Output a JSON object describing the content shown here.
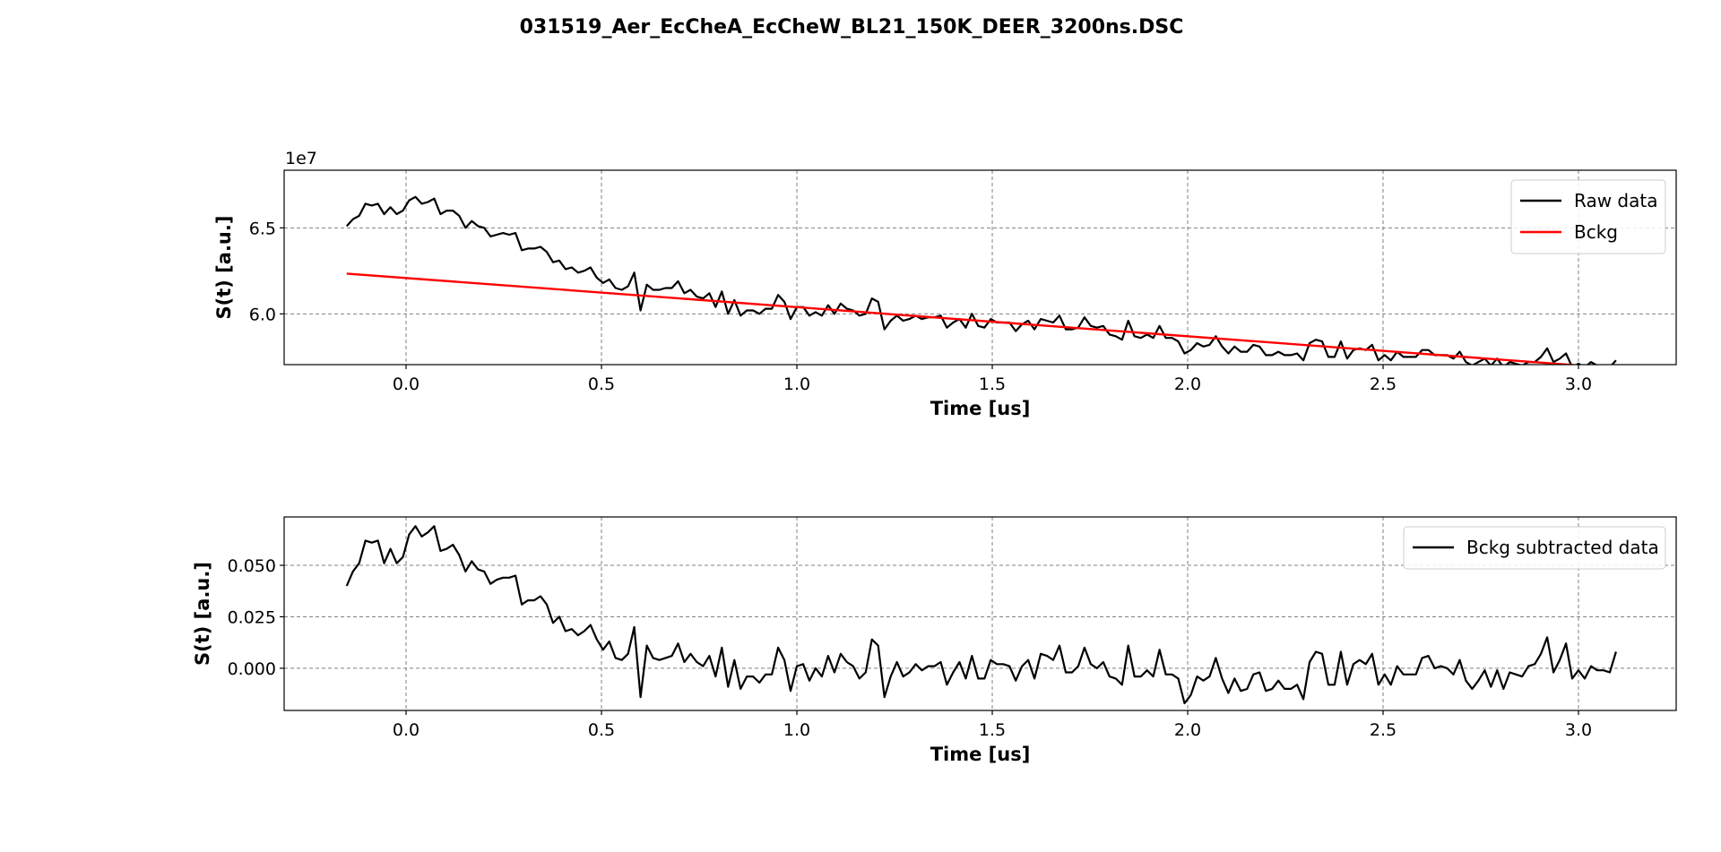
{
  "figure": {
    "title": "031519_Aer_EcCheA_EcCheW_BL21_150K_DEER_3200ns.DSC"
  },
  "chart_data": [
    {
      "type": "line",
      "id": "top",
      "title": "",
      "xlabel": "Time [us]",
      "ylabel": "S(t) [a.u.]",
      "offset_text": "1e7",
      "xlim": [
        -0.312,
        3.25
      ],
      "ylim": [
        5.705,
        6.835
      ],
      "x_ticks": [
        0.0,
        0.5,
        1.0,
        1.5,
        2.0,
        2.5,
        3.0
      ],
      "x_tick_labels": [
        "0.0",
        "0.5",
        "1.0",
        "1.5",
        "2.0",
        "2.5",
        "3.0"
      ],
      "y_ticks": [
        6.0,
        6.5
      ],
      "y_tick_labels": [
        "6.0",
        "6.5"
      ],
      "grid": true,
      "legend_position": "upper right",
      "x_start": -0.152,
      "x_step": 0.016,
      "series": [
        {
          "name": "Raw data",
          "color": "#000000",
          "values": [
            6.51,
            6.55,
            6.57,
            6.64,
            6.63,
            6.64,
            6.58,
            6.62,
            6.58,
            6.6,
            6.66,
            6.68,
            6.64,
            6.65,
            6.67,
            6.58,
            6.6,
            6.6,
            6.57,
            6.5,
            6.54,
            6.51,
            6.5,
            6.45,
            6.46,
            6.47,
            6.46,
            6.47,
            6.37,
            6.38,
            6.38,
            6.39,
            6.36,
            6.3,
            6.31,
            6.26,
            6.27,
            6.24,
            6.25,
            6.27,
            6.21,
            6.18,
            6.2,
            6.15,
            6.14,
            6.16,
            6.24,
            6.02,
            6.17,
            6.14,
            6.14,
            6.15,
            6.15,
            6.19,
            6.12,
            6.14,
            6.1,
            6.09,
            6.12,
            6.04,
            6.13,
            6.0,
            6.08,
            5.99,
            6.02,
            6.02,
            6.0,
            6.03,
            6.03,
            6.11,
            6.07,
            5.97,
            6.04,
            6.04,
            5.99,
            6.01,
            5.99,
            6.05,
            6.0,
            6.06,
            6.03,
            6.02,
            5.99,
            6.0,
            6.09,
            6.07,
            5.91,
            5.96,
            5.99,
            5.96,
            5.97,
            5.99,
            5.97,
            5.98,
            5.98,
            5.99,
            5.92,
            5.95,
            5.97,
            5.92,
            6.0,
            5.93,
            5.92,
            5.97,
            5.95,
            5.95,
            5.95,
            5.9,
            5.94,
            5.96,
            5.91,
            5.97,
            5.96,
            5.95,
            5.99,
            5.91,
            5.91,
            5.92,
            5.98,
            5.93,
            5.92,
            5.93,
            5.88,
            5.87,
            5.85,
            5.96,
            5.87,
            5.86,
            5.88,
            5.86,
            5.93,
            5.86,
            5.86,
            5.84,
            5.77,
            5.79,
            5.83,
            5.81,
            5.82,
            5.87,
            5.81,
            5.77,
            5.81,
            5.78,
            5.78,
            5.82,
            5.81,
            5.76,
            5.76,
            5.78,
            5.76,
            5.76,
            5.77,
            5.73,
            5.83,
            5.85,
            5.84,
            5.75,
            5.75,
            5.84,
            5.74,
            5.79,
            5.8,
            5.79,
            5.82,
            5.73,
            5.76,
            5.73,
            5.78,
            5.75,
            5.75,
            5.75,
            5.79,
            5.79,
            5.76,
            5.76,
            5.76,
            5.74,
            5.78,
            5.72,
            5.7,
            5.72,
            5.74,
            5.7,
            5.74,
            5.69,
            5.72,
            5.71,
            5.7,
            5.72,
            5.72,
            5.75,
            5.8,
            5.72,
            5.74,
            5.77,
            5.69,
            5.71,
            5.69,
            5.72,
            5.7,
            5.7,
            5.69,
            5.73
          ]
        },
        {
          "name": "Bckg",
          "color": "#ff0000",
          "values": [
            6.234,
            5.684
          ]
        }
      ]
    },
    {
      "type": "line",
      "id": "bottom",
      "title": "",
      "xlabel": "Time [us]",
      "ylabel": "S(t) [a.u.]",
      "xlim": [
        -0.312,
        3.25
      ],
      "ylim": [
        -0.0205,
        0.0735
      ],
      "x_ticks": [
        0.0,
        0.5,
        1.0,
        1.5,
        2.0,
        2.5,
        3.0
      ],
      "x_tick_labels": [
        "0.0",
        "0.5",
        "1.0",
        "1.5",
        "2.0",
        "2.5",
        "3.0"
      ],
      "y_ticks": [
        0.0,
        0.025,
        0.05
      ],
      "y_tick_labels": [
        "0.000",
        "0.025",
        "0.050"
      ],
      "grid": true,
      "legend_position": "upper right",
      "x_start": -0.152,
      "x_step": 0.016,
      "series": [
        {
          "name": "Bckg subtracted data",
          "color": "#000000",
          "values": [
            0.04,
            0.047,
            0.051,
            0.062,
            0.061,
            0.062,
            0.051,
            0.058,
            0.051,
            0.054,
            0.065,
            0.069,
            0.064,
            0.066,
            0.069,
            0.057,
            0.058,
            0.06,
            0.055,
            0.047,
            0.052,
            0.048,
            0.047,
            0.041,
            0.043,
            0.044,
            0.044,
            0.045,
            0.031,
            0.033,
            0.033,
            0.035,
            0.031,
            0.022,
            0.025,
            0.018,
            0.019,
            0.016,
            0.018,
            0.021,
            0.014,
            0.009,
            0.013,
            0.005,
            0.004,
            0.007,
            0.02,
            -0.014,
            0.011,
            0.005,
            0.004,
            0.005,
            0.006,
            0.012,
            0.003,
            0.007,
            0.003,
            0.001,
            0.006,
            -0.004,
            0.01,
            -0.009,
            0.004,
            -0.01,
            -0.004,
            -0.004,
            -0.007,
            -0.003,
            -0.003,
            0.01,
            0.004,
            -0.011,
            0.001,
            0.002,
            -0.006,
            0.0,
            -0.004,
            0.006,
            -0.002,
            0.007,
            0.003,
            0.001,
            -0.005,
            -0.002,
            0.014,
            0.011,
            -0.014,
            -0.004,
            0.003,
            -0.004,
            -0.002,
            0.002,
            -0.001,
            0.001,
            0.001,
            0.003,
            -0.008,
            -0.002,
            0.003,
            -0.005,
            0.006,
            -0.005,
            -0.005,
            0.004,
            0.002,
            0.002,
            0.001,
            -0.006,
            0.001,
            0.004,
            -0.005,
            0.007,
            0.006,
            0.004,
            0.011,
            -0.002,
            -0.002,
            0.001,
            0.01,
            0.002,
            0.0,
            0.003,
            -0.004,
            -0.005,
            -0.008,
            0.011,
            -0.004,
            -0.004,
            -0.001,
            -0.004,
            0.009,
            -0.003,
            -0.003,
            -0.005,
            -0.017,
            -0.013,
            -0.004,
            -0.006,
            -0.004,
            0.005,
            -0.005,
            -0.012,
            -0.005,
            -0.011,
            -0.01,
            -0.003,
            -0.002,
            -0.011,
            -0.01,
            -0.006,
            -0.01,
            -0.01,
            -0.008,
            -0.015,
            0.003,
            0.008,
            0.007,
            -0.008,
            -0.008,
            0.008,
            -0.008,
            0.002,
            0.004,
            0.002,
            0.007,
            -0.008,
            -0.003,
            -0.008,
            0.001,
            -0.003,
            -0.003,
            -0.003,
            0.005,
            0.006,
            0.0,
            0.001,
            0.0,
            -0.003,
            0.004,
            -0.006,
            -0.01,
            -0.006,
            -0.001,
            -0.009,
            -0.001,
            -0.01,
            -0.002,
            -0.003,
            -0.004,
            0.001,
            0.002,
            0.007,
            0.015,
            -0.002,
            0.004,
            0.012,
            -0.005,
            -0.001,
            -0.005,
            0.001,
            -0.001,
            -0.001,
            -0.002,
            0.008
          ]
        }
      ]
    }
  ]
}
